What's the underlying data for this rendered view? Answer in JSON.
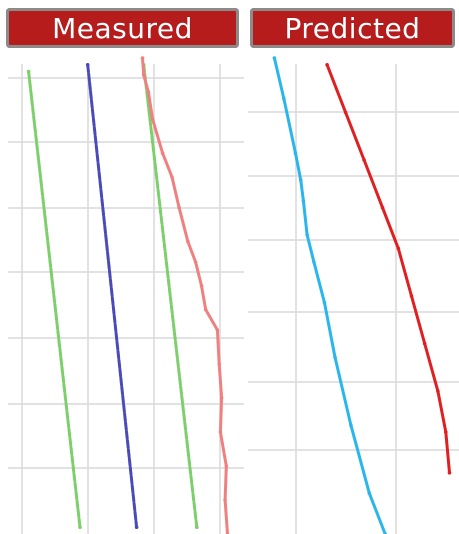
{
  "chart_data": [
    {
      "type": "line",
      "title": "Measured",
      "xlim": [
        0,
        4
      ],
      "ylim": [
        0,
        7
      ],
      "grid": true,
      "legend": "none",
      "series": [
        {
          "color": "#7ccf6b",
          "dashed": true,
          "points": [
            [
              0.35,
              0.2
            ],
            [
              1.22,
              6.9
            ]
          ]
        },
        {
          "color": "#4a4ab8",
          "dashed": true,
          "points": [
            [
              1.35,
              0.1
            ],
            [
              2.18,
              6.9
            ]
          ]
        },
        {
          "color": "#7ccf6b",
          "dashed": true,
          "points": [
            [
              2.3,
              0.1
            ],
            [
              3.2,
              6.9
            ]
          ]
        },
        {
          "color": "#f08080",
          "dashed": false,
          "points": [
            [
              2.28,
              0.0
            ],
            [
              2.3,
              0.25
            ],
            [
              2.38,
              0.5
            ],
            [
              2.45,
              0.9
            ],
            [
              2.62,
              1.4
            ],
            [
              2.78,
              1.75
            ],
            [
              2.9,
              2.2
            ],
            [
              3.05,
              2.7
            ],
            [
              3.18,
              3.0
            ],
            [
              3.28,
              3.35
            ],
            [
              3.35,
              3.7
            ],
            [
              3.55,
              4.0
            ],
            [
              3.58,
              4.5
            ],
            [
              3.62,
              5.0
            ],
            [
              3.6,
              5.5
            ],
            [
              3.7,
              6.0
            ],
            [
              3.68,
              6.5
            ],
            [
              3.72,
              7.0
            ]
          ]
        }
      ]
    },
    {
      "type": "line",
      "title": "Predicted",
      "xlim": [
        0,
        4
      ],
      "ylim": [
        0,
        7
      ],
      "grid": true,
      "legend": "none",
      "series": [
        {
          "color": "#2ab6ec",
          "dashed": false,
          "points": [
            [
              0.5,
              0.0
            ],
            [
              0.68,
              0.6
            ],
            [
              0.9,
              1.4
            ],
            [
              1.0,
              1.8
            ],
            [
              1.05,
              2.1
            ],
            [
              1.12,
              2.6
            ],
            [
              1.25,
              3.0
            ],
            [
              1.45,
              3.6
            ],
            [
              1.65,
              4.4
            ],
            [
              1.95,
              5.4
            ],
            [
              2.3,
              6.4
            ],
            [
              2.6,
              7.0
            ]
          ]
        },
        {
          "color": "#e02020",
          "dashed": false,
          "points": [
            [
              1.5,
              0.1
            ],
            [
              1.85,
              0.8
            ],
            [
              2.2,
              1.5
            ],
            [
              2.55,
              2.2
            ],
            [
              2.85,
              2.8
            ],
            [
              3.1,
              3.5
            ],
            [
              3.35,
              4.2
            ],
            [
              3.6,
              4.9
            ],
            [
              3.75,
              5.5
            ],
            [
              3.82,
              6.1
            ]
          ]
        }
      ]
    }
  ]
}
